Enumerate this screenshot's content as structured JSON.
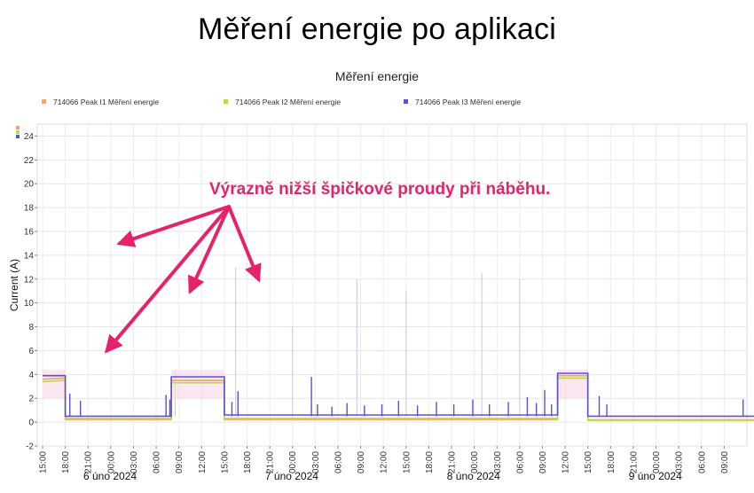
{
  "slide_title": "Měření energie po aplikaci",
  "callout": "Výrazně nižší špičkové proudy při náběhu.",
  "colors": {
    "i1": "#f4a460",
    "i2": "#b8d94a",
    "i3": "#5b4fe0",
    "arrow": "#e8226a"
  },
  "chart_data": {
    "type": "line",
    "title": "Měření energie",
    "xlabel": "",
    "ylabel": "Current (A)",
    "ylim": [
      -2,
      25
    ],
    "yticks": [
      -2,
      0,
      2,
      4,
      6,
      8,
      10,
      12,
      14,
      16,
      18,
      20,
      22,
      24
    ],
    "legend_position": "top",
    "grid": true,
    "x_tick_labels": [
      "15:00",
      "18:00",
      "21:00",
      "00:00",
      "03:00",
      "06:00",
      "09:00",
      "12:00",
      "15:00",
      "18:00",
      "21:00",
      "00:00",
      "03:00",
      "06:00",
      "09:00",
      "12:00",
      "15:00",
      "18:00",
      "21:00",
      "00:00",
      "03:00",
      "06:00",
      "09:00",
      "12:00",
      "15:00",
      "18:00",
      "21:00",
      "00:00",
      "03:00",
      "06:00",
      "09:00"
    ],
    "date_labels": [
      "6 úno 2024",
      "7 úno 2024",
      "8 úno 2024",
      "9 úno 2024"
    ],
    "series": [
      {
        "name": "714066  Peak I1 Měření energie",
        "segments": [
          [
            0,
            3.6
          ],
          [
            3,
            3.7
          ],
          [
            3,
            0.3
          ],
          [
            17,
            0.3
          ],
          [
            17,
            3.5
          ],
          [
            24,
            3.5
          ],
          [
            24,
            0.3
          ],
          [
            68,
            0.3
          ],
          [
            68,
            3.9
          ],
          [
            72,
            3.9
          ],
          [
            72,
            0.2
          ],
          [
            98,
            0.2
          ]
        ]
      },
      {
        "name": "714066  Peak I2 Měření energie",
        "segments": [
          [
            0,
            3.4
          ],
          [
            3,
            3.5
          ],
          [
            3,
            0.2
          ],
          [
            17,
            0.2
          ],
          [
            17,
            3.3
          ],
          [
            24,
            3.3
          ],
          [
            24,
            0.2
          ],
          [
            68,
            0.2
          ],
          [
            68,
            3.7
          ],
          [
            72,
            3.7
          ],
          [
            72,
            0.15
          ],
          [
            98,
            0.15
          ]
        ]
      },
      {
        "name": "714066  Peak I3 Měření energie",
        "segments": [
          [
            0,
            3.9
          ],
          [
            3,
            3.9
          ],
          [
            3,
            0.5
          ],
          [
            17,
            0.5
          ],
          [
            17,
            3.8
          ],
          [
            24,
            3.8
          ],
          [
            24,
            0.6
          ],
          [
            68,
            0.6
          ],
          [
            68,
            4.1
          ],
          [
            72,
            4.1
          ],
          [
            72,
            0.5
          ],
          [
            98,
            0.5
          ]
        ],
        "spikes": [
          [
            3.6,
            2.4
          ],
          [
            5,
            1.8
          ],
          [
            16.3,
            2.3
          ],
          [
            16.8,
            1.9
          ],
          [
            25,
            1.7
          ],
          [
            25.8,
            2.6
          ],
          [
            35.5,
            3.8
          ],
          [
            36.3,
            1.5
          ],
          [
            38.2,
            1.3
          ],
          [
            40.2,
            1.6
          ],
          [
            42.5,
            1.4
          ],
          [
            44.8,
            1.5
          ],
          [
            47,
            1.8
          ],
          [
            49.5,
            1.4
          ],
          [
            52,
            1.7
          ],
          [
            54.3,
            1.5
          ],
          [
            56.8,
            1.9
          ],
          [
            59,
            1.5
          ],
          [
            61.5,
            1.7
          ],
          [
            64,
            2.1
          ],
          [
            65.2,
            1.6
          ],
          [
            66.3,
            2.7
          ],
          [
            67.2,
            1.5
          ],
          [
            73.5,
            2.2
          ],
          [
            74.5,
            1.5
          ],
          [
            92.5,
            1.9
          ],
          [
            94.5,
            1.8
          ],
          [
            96.5,
            1.7
          ]
        ],
        "faint_peaks": [
          [
            17.5,
            4.3
          ],
          [
            25.5,
            13
          ],
          [
            33,
            8
          ],
          [
            41.5,
            12
          ],
          [
            48,
            11
          ],
          [
            58,
            12.5
          ],
          [
            63,
            12
          ]
        ]
      }
    ],
    "annotation_arrows_to": [
      [
        8.5,
        6
      ],
      [
        10.2,
        15
      ],
      [
        19.5,
        11
      ],
      [
        28.5,
        12
      ]
    ]
  }
}
